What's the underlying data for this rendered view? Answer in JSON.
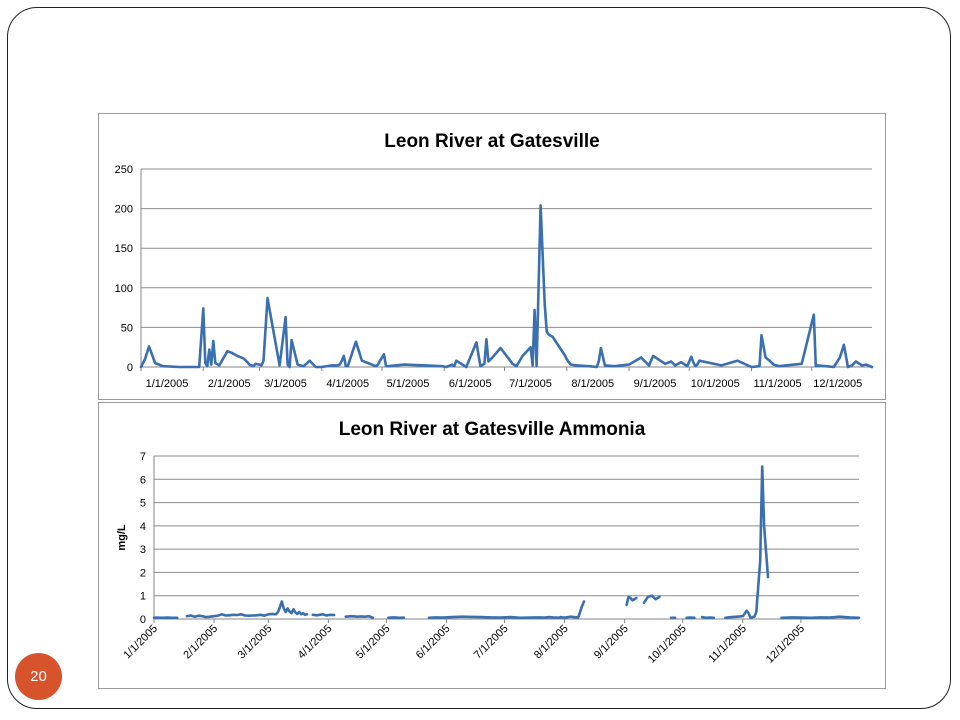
{
  "page_number": "20",
  "chart_data": [
    {
      "type": "line",
      "title": "Leon River at Gatesville",
      "xlabel": "",
      "ylabel": "",
      "ylim": [
        0,
        250
      ],
      "yticks": [
        "0",
        "50",
        "100",
        "150",
        "200",
        "250"
      ],
      "x_tick_labels": [
        "1/1/2005",
        "2/1/2005",
        "3/1/2005",
        "4/1/2005",
        "5/1/2005",
        "6/1/2005",
        "7/1/2005",
        "8/1/2005",
        "9/1/2005",
        "10/1/2005",
        "11/1/2005",
        "12/1/2005"
      ],
      "grid": true,
      "color": "#3a6fb0",
      "series": [
        {
          "x": [
            1,
            3,
            5,
            8,
            12,
            20,
            30,
            32,
            33,
            34,
            35,
            36,
            37,
            38,
            40,
            44,
            46,
            49,
            52,
            54,
            55,
            56,
            57,
            58,
            60,
            61,
            62,
            64,
            70,
            73,
            74,
            75,
            76,
            79,
            82,
            85,
            88,
            91,
            96,
            99,
            100,
            101,
            102,
            103,
            104,
            108,
            111,
            114,
            117,
            118,
            119,
            120,
            121,
            122,
            123,
            124,
            132,
            151,
            153,
            155,
            156,
            157,
            158,
            163,
            168,
            170,
            172,
            173,
            174,
            176,
            178,
            180,
            184,
            186,
            188,
            191,
            195,
            196,
            197,
            198,
            200,
            202,
            203,
            204,
            206,
            212,
            213,
            214,
            215,
            218,
            224,
            228,
            229,
            230,
            232,
            237,
            240,
            244,
            250,
            254,
            256,
            262,
            265,
            267,
            270,
            273,
            275,
            276,
            277,
            278,
            279,
            290,
            298,
            305,
            309,
            310,
            312,
            313,
            314,
            316,
            319,
            322,
            330,
            336,
            337,
            338,
            342,
            346,
            349,
            351,
            353,
            355,
            357,
            360,
            362,
            365
          ],
          "values": [
            0,
            10,
            26,
            5,
            1,
            0,
            0,
            74,
            5,
            1,
            22,
            3,
            33,
            5,
            2,
            20,
            18,
            14,
            11,
            6,
            3,
            2,
            1,
            4,
            3,
            2,
            8,
            87,
            2,
            63,
            3,
            0,
            34,
            3,
            1,
            8,
            0,
            0,
            2,
            2,
            3,
            8,
            14,
            1,
            1,
            32,
            8,
            5,
            2,
            1,
            3,
            8,
            12,
            16,
            1,
            1,
            3,
            1,
            0,
            2,
            3,
            1,
            8,
            0,
            31,
            1,
            4,
            35,
            7,
            12,
            18,
            24,
            11,
            4,
            1,
            14,
            25,
            2,
            72,
            1,
            204,
            80,
            45,
            41,
            38,
            15,
            10,
            6,
            3,
            2,
            1,
            0,
            8,
            24,
            2,
            1,
            2,
            3,
            12,
            2,
            14,
            4,
            7,
            2,
            6,
            1,
            13,
            6,
            1,
            3,
            8,
            2,
            8,
            0,
            1,
            40,
            12,
            10,
            8,
            3,
            1,
            2,
            4,
            66,
            1,
            2,
            1,
            0,
            12,
            28,
            0,
            2,
            7,
            2,
            3,
            0
          ]
        }
      ]
    },
    {
      "type": "line",
      "title": "Leon River at Gatesville Ammonia",
      "xlabel": "",
      "ylabel": "mg/L",
      "ylim": [
        0,
        7
      ],
      "yticks": [
        "0",
        "1",
        "2",
        "3",
        "4",
        "5",
        "6",
        "7"
      ],
      "x_tick_labels": [
        "1/1/2005",
        "2/1/2005",
        "3/1/2005",
        "4/1/2005",
        "5/1/2005",
        "6/1/2005",
        "7/1/2005",
        "8/1/2005",
        "9/1/2005",
        "10/1/2005",
        "11/1/2005",
        "12/1/2005"
      ],
      "grid": true,
      "color": "#3a6fb0",
      "series": [
        {
          "segments": [
            {
              "x": [
                1,
                2,
                5,
                8,
                10,
                13
              ],
              "values": [
                0.05,
                0.06,
                0.05,
                0.06,
                0.05,
                0.05
              ]
            },
            {
              "x": [
                18,
                20,
                22,
                24,
                26,
                28,
                30,
                32,
                34,
                36,
                38,
                40,
                42,
                44,
                46,
                48,
                50,
                52,
                54,
                56,
                58,
                60,
                62,
                64,
                65,
                66,
                67,
                68,
                69,
                70,
                71,
                72,
                73,
                74,
                75,
                76,
                77,
                78,
                79,
                80
              ],
              "values": [
                0.12,
                0.15,
                0.1,
                0.14,
                0.12,
                0.08,
                0.1,
                0.12,
                0.14,
                0.2,
                0.15,
                0.16,
                0.18,
                0.17,
                0.2,
                0.15,
                0.14,
                0.15,
                0.16,
                0.18,
                0.14,
                0.2,
                0.22,
                0.2,
                0.3,
                0.5,
                0.75,
                0.45,
                0.3,
                0.45,
                0.32,
                0.25,
                0.42,
                0.28,
                0.22,
                0.3,
                0.2,
                0.25,
                0.18,
                0.2
              ]
            },
            {
              "x": [
                83,
                85,
                88,
                90,
                92,
                94
              ],
              "values": [
                0.18,
                0.16,
                0.2,
                0.15,
                0.18,
                0.17
              ]
            },
            {
              "x": [
                100,
                103,
                106,
                108,
                110,
                112,
                114
              ],
              "values": [
                0.1,
                0.12,
                0.1,
                0.11,
                0.1,
                0.12,
                0.05
              ]
            },
            {
              "x": [
                122,
                124,
                126,
                128,
                130
              ],
              "values": [
                0.05,
                0.07,
                0.06,
                0.05,
                0.06
              ]
            },
            {
              "x": [
                143,
                146,
                150,
                155,
                160,
                165,
                170,
                175,
                180,
                185,
                190,
                195,
                200,
                203,
                205,
                207,
                209,
                210,
                211,
                212,
                214,
                216,
                218,
                220,
                221,
                222,
                223
              ],
              "values": [
                0.05,
                0.07,
                0.06,
                0.08,
                0.1,
                0.09,
                0.08,
                0.07,
                0.06,
                0.08,
                0.05,
                0.06,
                0.07,
                0.06,
                0.08,
                0.07,
                0.06,
                0.05,
                0.08,
                0.06,
                0.07,
                0.1,
                0.08,
                0.07,
                0.3,
                0.55,
                0.75
              ]
            },
            {
              "x": [
                245,
                246,
                247,
                248,
                250
              ],
              "values": [
                0.6,
                0.95,
                0.9,
                0.8,
                0.9
              ]
            },
            {
              "x": [
                254,
                256,
                258,
                260,
                262
              ],
              "values": [
                0.7,
                0.95,
                1.0,
                0.85,
                0.95
              ]
            },
            {
              "x": [
                268,
                270
              ],
              "values": [
                0.05,
                0.05
              ]
            },
            {
              "x": [
                276,
                278,
                280
              ],
              "values": [
                0.05,
                0.06,
                0.05
              ]
            },
            {
              "x": [
                284,
                286,
                288,
                290
              ],
              "values": [
                0.08,
                0.05,
                0.06,
                0.05
              ]
            },
            {
              "x": [
                296,
                299,
                302,
                305,
                307,
                308,
                309,
                310,
                311,
                312,
                314,
                315,
                316,
                318
              ],
              "values": [
                0.05,
                0.08,
                0.1,
                0.12,
                0.35,
                0.25,
                0.05,
                0.08,
                0.1,
                0.3,
                2.5,
                6.55,
                4.0,
                1.8
              ]
            },
            {
              "x": [
                325,
                330,
                335,
                340,
                345,
                350,
                355,
                360,
                365
              ],
              "values": [
                0.05,
                0.07,
                0.06,
                0.05,
                0.07,
                0.06,
                0.1,
                0.07,
                0.05
              ]
            }
          ]
        }
      ]
    }
  ]
}
